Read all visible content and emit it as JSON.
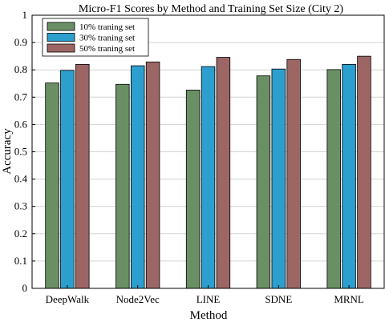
{
  "chart_data": {
    "type": "bar",
    "title": "Micro-F1 Scores by Method and Training Set Size (City 2)",
    "xlabel": "Method",
    "ylabel": "Accuracy",
    "ylim": [
      0,
      1
    ],
    "yticks": [
      "0",
      "0.1",
      "0.2",
      "0.3",
      "0.4",
      "0.5",
      "0.6",
      "0.7",
      "0.8",
      "0.9",
      "1"
    ],
    "categories": [
      "DeepWalk",
      "Node2Vec",
      "LINE",
      "SDNE",
      "MRNL"
    ],
    "series": [
      {
        "name": "10% traning set",
        "color": "#6a8f64",
        "values": [
          0.752,
          0.747,
          0.726,
          0.778,
          0.801
        ]
      },
      {
        "name": "30% traning set",
        "color": "#2d9fce",
        "values": [
          0.798,
          0.815,
          0.812,
          0.803,
          0.82
        ]
      },
      {
        "name": "50% traning set",
        "color": "#9c6665",
        "values": [
          0.82,
          0.829,
          0.846,
          0.838,
          0.85
        ]
      }
    ],
    "grid": true,
    "legend_position": "top-left"
  }
}
